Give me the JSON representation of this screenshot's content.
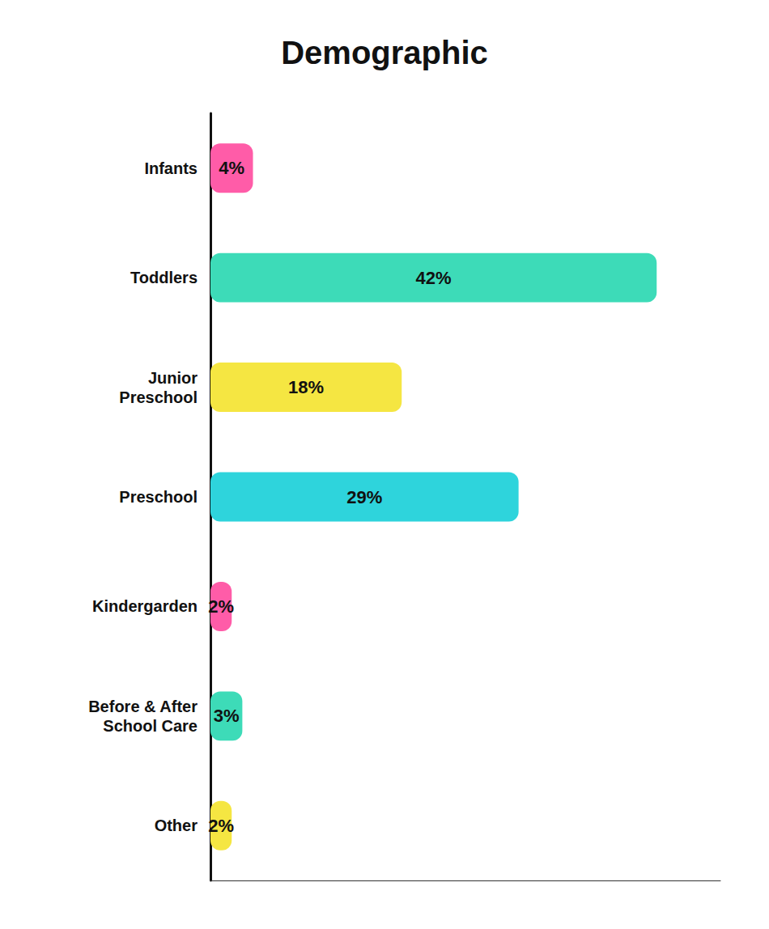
{
  "chart_data": {
    "type": "bar",
    "orientation": "horizontal",
    "title": "Demographic",
    "categories": [
      "Infants",
      "Toddlers",
      "Junior\nPreschool",
      "Preschool",
      "Kindergarden",
      "Before & After\nSchool Care",
      "Other"
    ],
    "values": [
      4,
      42,
      18,
      29,
      2,
      3,
      2
    ],
    "value_labels": [
      "4%",
      "42%",
      "18%",
      "29%",
      "2%",
      "3%",
      "2%"
    ],
    "colors": [
      "#FF5CA8",
      "#3DDBB8",
      "#F5E642",
      "#2ED4DC",
      "#FF5CA8",
      "#3DDBB8",
      "#F5E642"
    ],
    "data_labels": true,
    "xlim": [
      0,
      48
    ],
    "tick_labels": "y",
    "grid": false
  }
}
